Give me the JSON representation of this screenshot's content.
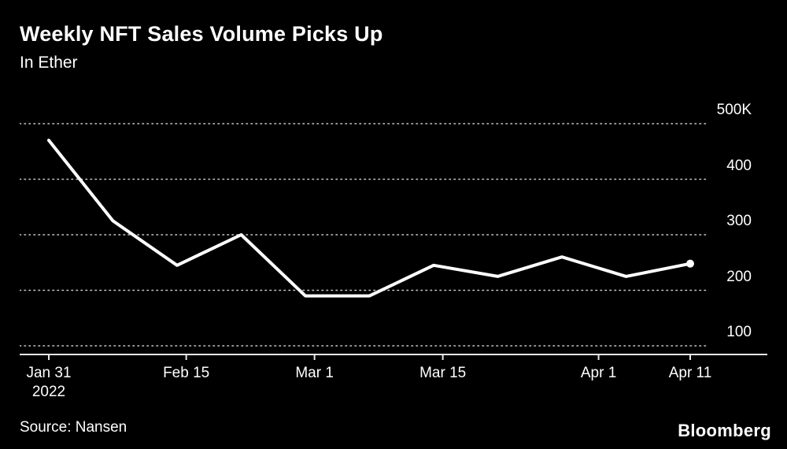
{
  "header": {
    "title": "Weekly NFT Sales Volume Picks Up",
    "subtitle": "In Ether"
  },
  "footer": {
    "source": "Source: Nansen",
    "brand": "Bloomberg"
  },
  "chart_data": {
    "type": "line",
    "title": "Weekly NFT Sales Volume Picks Up",
    "subtitle": "In Ether",
    "unit": "Ether",
    "x": [
      "Jan 31",
      "Feb 7",
      "Feb 14",
      "Feb 21",
      "Feb 28",
      "Mar 7",
      "Mar 14",
      "Mar 21",
      "Mar 28",
      "Apr 4",
      "Apr 11"
    ],
    "x_days": [
      0,
      7,
      14,
      21,
      28,
      35,
      42,
      49,
      56,
      63,
      70
    ],
    "values": [
      470,
      325,
      245,
      300,
      190,
      190,
      245,
      225,
      260,
      225,
      248
    ],
    "ylim": [
      100,
      500
    ],
    "yticks": [
      {
        "value": 500,
        "label": "500K"
      },
      {
        "value": 400,
        "label": "400"
      },
      {
        "value": 300,
        "label": "300"
      },
      {
        "value": 200,
        "label": "200"
      },
      {
        "value": 100,
        "label": "100"
      }
    ],
    "xticks": [
      {
        "day": 0,
        "label": "Jan 31",
        "sublabel": "2022"
      },
      {
        "day": 15,
        "label": "Feb 15",
        "sublabel": ""
      },
      {
        "day": 29,
        "label": "Mar 1",
        "sublabel": ""
      },
      {
        "day": 43,
        "label": "Mar 15",
        "sublabel": ""
      },
      {
        "day": 60,
        "label": "Apr 1",
        "sublabel": ""
      },
      {
        "day": 70,
        "label": "Apr 11",
        "sublabel": ""
      }
    ],
    "grid": "dotted horizontal",
    "legend": "none",
    "line_color": "#ffffff",
    "grid_color": "#c8c8c8",
    "axis_color": "#e6e6e6",
    "background": "#000000"
  }
}
